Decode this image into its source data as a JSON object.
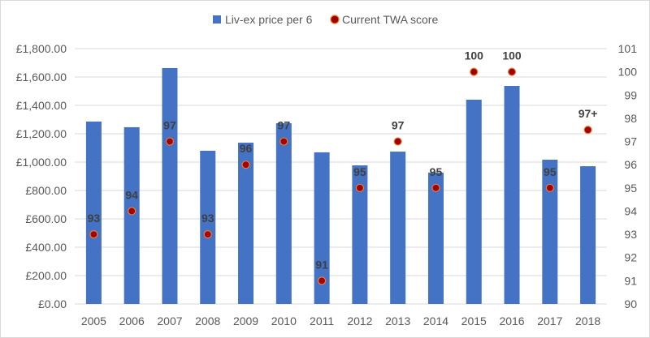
{
  "chart_data": {
    "type": "bar",
    "title": "",
    "categories": [
      "2005",
      "2006",
      "2007",
      "2008",
      "2009",
      "2010",
      "2011",
      "2012",
      "2013",
      "2014",
      "2015",
      "2016",
      "2017",
      "2018"
    ],
    "series": [
      {
        "name": "Liv-ex price per 6",
        "kind": "bar",
        "axis": "left",
        "color": "#4472C4",
        "values": [
          1286,
          1246,
          1663,
          1080,
          1137,
          1274,
          1069,
          977,
          1074,
          926,
          1440,
          1537,
          1017,
          971
        ]
      },
      {
        "name": "Current TWA score",
        "kind": "scatter",
        "axis": "right",
        "color": "#C00000",
        "values": [
          93,
          94,
          97,
          93,
          96,
          97,
          91,
          95,
          97,
          95,
          100,
          100,
          95,
          97.5
        ],
        "labels": [
          "93",
          "94",
          "97",
          "93",
          "96",
          "97",
          "91",
          "95",
          "97",
          "95",
          "100",
          "100",
          "95",
          "97+"
        ]
      }
    ],
    "y_left": {
      "ylim": [
        0,
        1800
      ],
      "ticks": [
        "£0.00",
        "£200.00",
        "£400.00",
        "£600.00",
        "£800.00",
        "£1,000.00",
        "£1,200.00",
        "£1,400.00",
        "£1,600.00",
        "£1,800.00"
      ]
    },
    "y_right": {
      "ylim": [
        90,
        101
      ],
      "ticks": [
        "90",
        "91",
        "92",
        "93",
        "94",
        "95",
        "96",
        "97",
        "98",
        "99",
        "100",
        "101"
      ]
    },
    "grid": true,
    "legend": "top"
  }
}
